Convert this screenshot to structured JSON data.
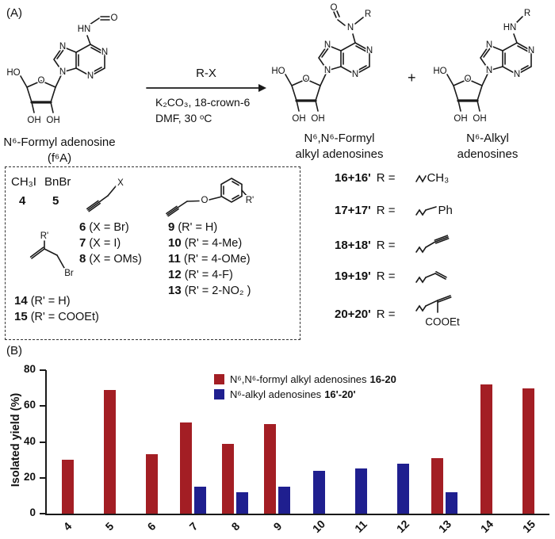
{
  "panel_a": {
    "label": "(A)",
    "reactant": {
      "line1": "N⁶-Formyl adenosine",
      "line2": "(f⁶A)"
    },
    "arrow": {
      "above": "R-X",
      "cond1": "K₂CO₃, 18-crown-6",
      "cond2": "DMF, 30 ᵒC"
    },
    "plus": "+",
    "product1": {
      "line1": "N⁶,N⁶-Formyl",
      "line2": "alkyl adenosines"
    },
    "product2": {
      "line1": "N⁶-Alkyl",
      "line2": "adenosines"
    },
    "atoms": {
      "N": "N",
      "HN": "HN",
      "O": "O",
      "HO": "HO",
      "OH": "OH",
      "R": "R",
      "Rp": "R'",
      "X": "X",
      "Br": "Br",
      "Ph": "Ph",
      "CH3": "CH₃",
      "COOEt": "COOEt"
    },
    "box": {
      "r1": {
        "f1": "CH₃I",
        "n1": "4",
        "f2": "BnBr",
        "n2": "5"
      },
      "propargyl": [
        {
          "n": "6",
          "t": "(X = Br)"
        },
        {
          "n": "7",
          "t": "(X = I)"
        },
        {
          "n": "8",
          "t": "(X = OMs)"
        }
      ],
      "aryl": [
        {
          "n": "9",
          "t": "(R' = H)"
        },
        {
          "n": "10",
          "t": "(R' = 4-Me)"
        },
        {
          "n": "11",
          "t": "(R' = 4-OMe)"
        },
        {
          "n": "12",
          "t": "(R' = 4-F)"
        },
        {
          "n": "13",
          "t": "(R' = 2-NO₂ )"
        }
      ],
      "allyl": [
        {
          "n": "14",
          "t": "(R' = H)"
        },
        {
          "n": "15",
          "t": "(R' = COOEt)"
        }
      ]
    },
    "rgroups": [
      {
        "id": "16+16'",
        "eq": "R ="
      },
      {
        "id": "17+17'",
        "eq": "R ="
      },
      {
        "id": "18+18'",
        "eq": "R ="
      },
      {
        "id": "19+19'",
        "eq": "R ="
      },
      {
        "id": "20+20'",
        "eq": "R ="
      }
    ]
  },
  "panel_b": {
    "label": "(B)"
  },
  "chart_data": {
    "type": "bar",
    "categories": [
      "4",
      "5",
      "6",
      "7",
      "8",
      "9",
      "10",
      "11",
      "12",
      "13",
      "14",
      "15"
    ],
    "series": [
      {
        "name": "N⁶,N⁶-formyl alkyl adenosines",
        "bold_suffix": "16-20",
        "color": "#A31E24",
        "values": [
          30,
          69,
          33,
          51,
          39,
          50,
          null,
          null,
          null,
          31,
          72,
          70
        ]
      },
      {
        "name": "N⁶-alkyl adenosines",
        "bold_suffix": "16'-20'",
        "color": "#1F1F8F",
        "values": [
          null,
          null,
          null,
          15,
          12,
          15,
          24,
          25,
          28,
          12,
          null,
          null
        ]
      }
    ],
    "xlabel": "",
    "ylabel": "Isolated yield (%)",
    "ylim": [
      0,
      80
    ],
    "yticks": [
      0,
      20,
      40,
      60,
      80
    ],
    "grid": false,
    "legend_position": "top-center"
  }
}
